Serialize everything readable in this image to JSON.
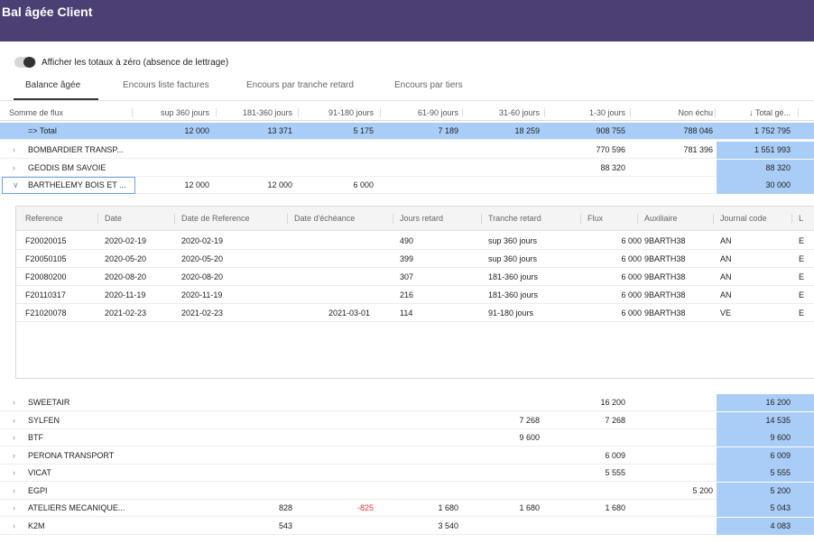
{
  "window": {
    "title": "Bal âgée Client"
  },
  "toggle": {
    "label": "Afficher les totaux à zéro (absence de lettrage)",
    "on": false
  },
  "tabs": [
    {
      "label": "Balance âgée",
      "active": true
    },
    {
      "label": "Encours liste factures",
      "active": false
    },
    {
      "label": "Encours par tranche retard",
      "active": false
    },
    {
      "label": "Encours par tiers",
      "active": false
    }
  ],
  "grid": {
    "columns": [
      "Somme de flux",
      "sup 360 jours",
      "181-360 jours",
      "91-180 jours",
      "61-90 jours",
      "31-60 jours",
      "1-30 jours",
      "Non échu",
      "↓ Total gé..."
    ],
    "total_row": {
      "label": "=> Total",
      "values": [
        "12 000",
        "13 371",
        "5 175",
        "7 189",
        "18 259",
        "908 755",
        "788 046",
        "1 752 795"
      ]
    },
    "rows_top": [
      {
        "label": "BOMBARDIER TRANSP...",
        "values": [
          "",
          "",
          "",
          "",
          "",
          "770 596",
          "781 396",
          "1 551 993"
        ],
        "expanded": false
      },
      {
        "label": "GEODIS BM SAVOIE",
        "values": [
          "",
          "",
          "",
          "",
          "",
          "88 320",
          "",
          "88 320"
        ],
        "expanded": false
      },
      {
        "label": "BARTHELEMY BOIS ET ...",
        "values": [
          "12 000",
          "12 000",
          "6 000",
          "",
          "",
          "",
          "",
          "30 000"
        ],
        "expanded": true
      }
    ],
    "rows_bottom": [
      {
        "label": "SWEETAIR",
        "values": [
          "",
          "",
          "",
          "",
          "",
          "16 200",
          "",
          "16 200"
        ],
        "expanded": false
      },
      {
        "label": "SYLFEN",
        "values": [
          "",
          "",
          "",
          "",
          "7 268",
          "7 268",
          "",
          "14 535"
        ],
        "expanded": false
      },
      {
        "label": "BTF",
        "values": [
          "",
          "",
          "",
          "",
          "9 600",
          "",
          "",
          "9 600"
        ],
        "expanded": false
      },
      {
        "label": "PERONA TRANSPORT",
        "values": [
          "",
          "",
          "",
          "",
          "",
          "6 009",
          "",
          "6 009"
        ],
        "expanded": false
      },
      {
        "label": "VICAT",
        "values": [
          "",
          "",
          "",
          "",
          "",
          "5 555",
          "",
          "5 555"
        ],
        "expanded": false
      },
      {
        "label": "EGPI",
        "values": [
          "",
          "",
          "",
          "",
          "",
          "",
          "5 200",
          "5 200"
        ],
        "expanded": false
      },
      {
        "label": "ATELIERS MECANIQUE...",
        "values": [
          "",
          "828",
          "-825",
          "1 680",
          "1 680",
          "1 680",
          "",
          "5 043"
        ],
        "expanded": false
      },
      {
        "label": "K2M",
        "values": [
          "",
          "543",
          "",
          "3 540",
          "",
          "",
          "",
          "4 083"
        ],
        "expanded": false
      }
    ]
  },
  "detail": {
    "columns": [
      "Reference",
      "Date",
      "Date de Reference",
      "Date d'échéance",
      "Jours retard",
      "Tranche retard",
      "Flux",
      "Auxiliaire",
      "Journal code",
      "L"
    ],
    "rows": [
      [
        "F20020015",
        "2020-02-19",
        "2020-02-19",
        "",
        "490",
        "sup 360 jours",
        "6 000",
        "9BARTH38",
        "AN",
        "E"
      ],
      [
        "F20050105",
        "2020-05-20",
        "2020-05-20",
        "",
        "399",
        "sup 360 jours",
        "6 000",
        "9BARTH38",
        "AN",
        "E"
      ],
      [
        "F20080200",
        "2020-08-20",
        "2020-08-20",
        "",
        "307",
        "181-360 jours",
        "6 000",
        "9BARTH38",
        "AN",
        "E"
      ],
      [
        "F20110317",
        "2020-11-19",
        "2020-11-19",
        "",
        "216",
        "181-360 jours",
        "6 000",
        "9BARTH38",
        "AN",
        "E"
      ],
      [
        "F21020078",
        "2021-02-23",
        "2021-02-23",
        "2021-03-01",
        "114",
        "91-180 jours",
        "6 000",
        "9BARTH38",
        "VE",
        "E"
      ]
    ]
  },
  "colors": {
    "header_bg": "#4c3f73",
    "highlight": "#a9cdf6",
    "negative": "#e03434",
    "selection": "#6aa4e8"
  }
}
